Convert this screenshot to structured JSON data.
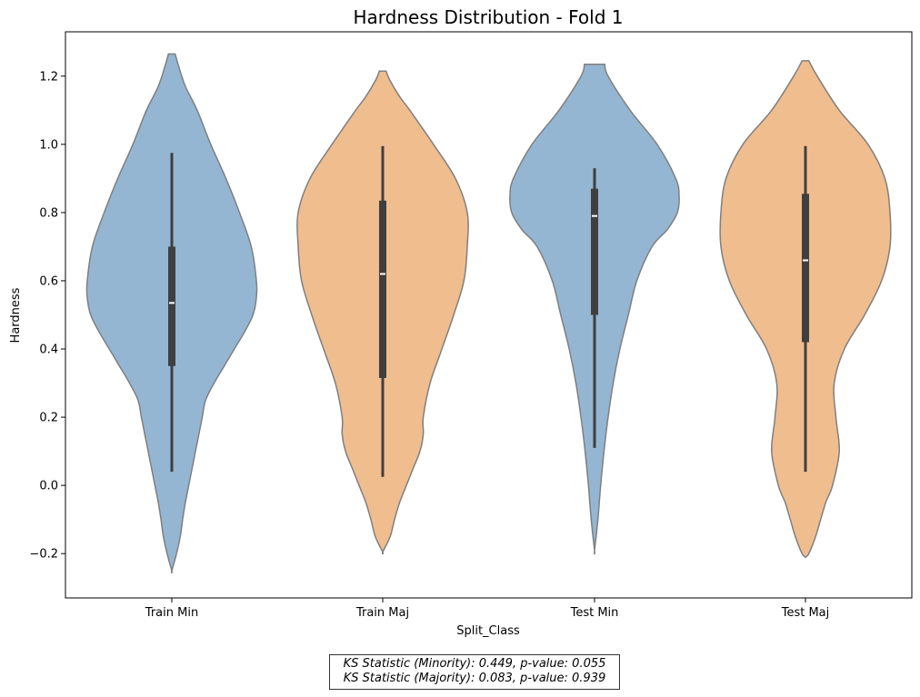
{
  "chart_data": {
    "type": "violin",
    "title": "Hardness Distribution - Fold 1",
    "xlabel": "Split_Class",
    "ylabel": "Hardness",
    "ylim": [
      -0.33,
      1.33
    ],
    "yticks": [
      -0.2,
      0.0,
      0.2,
      0.4,
      0.6,
      0.8,
      1.0,
      1.2
    ],
    "ytick_labels": [
      "−0.2",
      "0.0",
      "0.2",
      "0.4",
      "0.6",
      "0.8",
      "1.0",
      "1.2"
    ],
    "grid": false,
    "categories": [
      "Train Min",
      "Train Maj",
      "Test Min",
      "Test Maj"
    ],
    "colors": [
      "#94b6d2",
      "#f0bd8f",
      "#94b6d2",
      "#f0bd8f"
    ],
    "violins": [
      {
        "category": "Train Min",
        "kde_max": 0.25,
        "kde": [
          [
            1.265,
            0.01
          ],
          [
            1.23,
            0.02
          ],
          [
            1.17,
            0.04
          ],
          [
            1.1,
            0.075
          ],
          [
            1.0,
            0.115
          ],
          [
            0.9,
            0.16
          ],
          [
            0.8,
            0.2
          ],
          [
            0.7,
            0.235
          ],
          [
            0.6,
            0.25
          ],
          [
            0.55,
            0.25
          ],
          [
            0.5,
            0.24
          ],
          [
            0.45,
            0.215
          ],
          [
            0.4,
            0.185
          ],
          [
            0.35,
            0.155
          ],
          [
            0.3,
            0.125
          ],
          [
            0.25,
            0.1
          ],
          [
            0.2,
            0.09
          ],
          [
            0.15,
            0.08
          ],
          [
            0.1,
            0.07
          ],
          [
            0.05,
            0.06
          ],
          [
            0.0,
            0.05
          ],
          [
            -0.05,
            0.04
          ],
          [
            -0.1,
            0.032
          ],
          [
            -0.15,
            0.025
          ],
          [
            -0.2,
            0.014
          ],
          [
            -0.25,
            0.0
          ]
        ],
        "whisker": [
          0.04,
          0.975
        ],
        "q1": 0.35,
        "q3": 0.7,
        "median": 0.535
      },
      {
        "category": "Train Maj",
        "kde_max": 0.25,
        "kde": [
          [
            1.215,
            0.01
          ],
          [
            1.19,
            0.02
          ],
          [
            1.14,
            0.05
          ],
          [
            1.1,
            0.08
          ],
          [
            1.0,
            0.15
          ],
          [
            0.9,
            0.215
          ],
          [
            0.8,
            0.25
          ],
          [
            0.7,
            0.25
          ],
          [
            0.6,
            0.24
          ],
          [
            0.5,
            0.21
          ],
          [
            0.4,
            0.175
          ],
          [
            0.3,
            0.14
          ],
          [
            0.2,
            0.12
          ],
          [
            0.15,
            0.12
          ],
          [
            0.1,
            0.11
          ],
          [
            0.05,
            0.09
          ],
          [
            0.0,
            0.07
          ],
          [
            -0.05,
            0.05
          ],
          [
            -0.1,
            0.035
          ],
          [
            -0.15,
            0.022
          ],
          [
            -0.195,
            0.0
          ]
        ],
        "whisker": [
          0.025,
          0.995
        ],
        "q1": 0.315,
        "q3": 0.835,
        "median": 0.62
      },
      {
        "category": "Test Min",
        "kde_max": 0.25,
        "kde": [
          [
            1.235,
            0.03
          ],
          [
            1.2,
            0.04
          ],
          [
            1.1,
            0.105
          ],
          [
            1.0,
            0.185
          ],
          [
            0.9,
            0.24
          ],
          [
            0.85,
            0.25
          ],
          [
            0.8,
            0.245
          ],
          [
            0.75,
            0.215
          ],
          [
            0.7,
            0.17
          ],
          [
            0.6,
            0.125
          ],
          [
            0.5,
            0.1
          ],
          [
            0.4,
            0.075
          ],
          [
            0.3,
            0.055
          ],
          [
            0.2,
            0.04
          ],
          [
            0.1,
            0.028
          ],
          [
            0.0,
            0.018
          ],
          [
            -0.1,
            0.01
          ],
          [
            -0.19,
            0.0
          ]
        ],
        "whisker": [
          0.11,
          0.93
        ],
        "q1": 0.5,
        "q3": 0.87,
        "median": 0.79
      },
      {
        "category": "Test Maj",
        "kde_max": 0.25,
        "kde": [
          [
            1.245,
            0.01
          ],
          [
            1.2,
            0.035
          ],
          [
            1.1,
            0.1
          ],
          [
            1.0,
            0.185
          ],
          [
            0.9,
            0.235
          ],
          [
            0.8,
            0.25
          ],
          [
            0.7,
            0.25
          ],
          [
            0.6,
            0.225
          ],
          [
            0.5,
            0.175
          ],
          [
            0.4,
            0.115
          ],
          [
            0.3,
            0.085
          ],
          [
            0.2,
            0.09
          ],
          [
            0.1,
            0.1
          ],
          [
            0.0,
            0.08
          ],
          [
            -0.05,
            0.06
          ],
          [
            -0.1,
            0.045
          ],
          [
            -0.15,
            0.03
          ],
          [
            -0.2,
            0.01
          ],
          [
            -0.21,
            0.0
          ]
        ],
        "whisker": [
          0.04,
          0.995
        ],
        "q1": 0.42,
        "q3": 0.855,
        "median": 0.66
      }
    ],
    "annotation": {
      "line1": "KS Statistic (Minority): 0.449, p-value: 0.055",
      "line2": "KS Statistic (Majority): 0.083, p-value: 0.939"
    }
  }
}
